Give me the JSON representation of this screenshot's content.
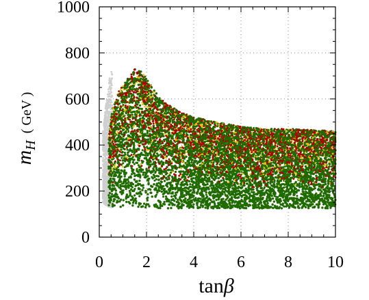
{
  "chart_data": {
    "type": "scatter",
    "title": "",
    "xlabel": "tanβ",
    "ylabel": "m_H (GeV)",
    "ylabel_main": "m",
    "ylabel_sub": "H",
    "ylabel_unit": "( GeV )",
    "xlabel_main": "tan",
    "xlabel_greek": "β",
    "xlim": [
      0,
      10
    ],
    "ylim": [
      0,
      1000
    ],
    "xticks": [
      0,
      2,
      4,
      6,
      8,
      10
    ],
    "yticks": [
      0,
      200,
      400,
      600,
      800,
      1000
    ],
    "grid": true,
    "series_colors": {
      "background": "#cfcfcf",
      "yellow": "#e8c200",
      "red": "#b30000",
      "green": "#1f6b00"
    },
    "region_envelope": {
      "x": [
        0.4,
        0.55,
        0.8,
        1.0,
        1.3,
        1.5,
        1.8,
        2.0,
        2.3,
        2.6,
        3.0,
        3.5,
        4.0,
        5.0,
        6.0,
        7.0,
        8.0,
        9.0,
        10.0
      ],
      "y_upper": [
        430,
        550,
        630,
        660,
        700,
        730,
        720,
        690,
        640,
        600,
        570,
        540,
        520,
        500,
        480,
        470,
        470,
        465,
        460
      ],
      "y_lower": [
        130,
        130,
        125,
        125,
        125,
        125,
        125,
        125,
        125,
        125,
        125,
        125,
        125,
        125,
        125,
        125,
        125,
        125,
        125
      ]
    },
    "gray_envelope": {
      "x": [
        0.15,
        0.25,
        0.35,
        0.45,
        0.55
      ],
      "y_upper": [
        450,
        550,
        620,
        700,
        730
      ],
      "y_lower": [
        150,
        140,
        135,
        130,
        130
      ]
    }
  }
}
